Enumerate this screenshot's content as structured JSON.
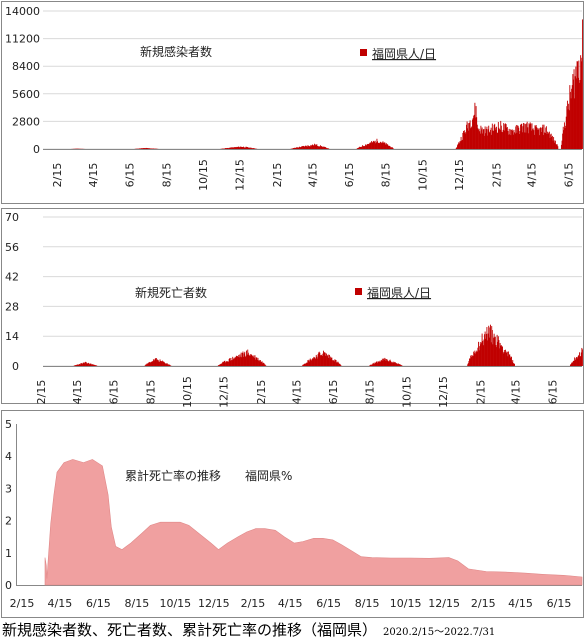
{
  "chart_data": [
    {
      "type": "bar",
      "title": "新規感染者数",
      "legend": "福岡県人/日",
      "legend_position": "top-center",
      "color": "#c00000",
      "ylim": [
        0,
        14000
      ],
      "yticks": [
        "0",
        "2800",
        "5600",
        "8400",
        "11200",
        "14000"
      ],
      "xticks": [
        "2/15",
        "4/15",
        "6/15",
        "8/15",
        "10/15",
        "12/15",
        "2/15",
        "4/15",
        "6/15",
        "8/15",
        "10/15",
        "12/15",
        "2/15",
        "4/15",
        "6/15"
      ],
      "grid": true,
      "waves": [
        {
          "start": "2020-04-01",
          "peak": "2020-04-10",
          "end": "2020-04-25",
          "peak_value": 40
        },
        {
          "start": "2020-07-15",
          "peak": "2020-08-03",
          "end": "2020-08-25",
          "peak_value": 120
        },
        {
          "start": "2020-12-05",
          "peak": "2021-01-10",
          "end": "2021-02-05",
          "peak_value": 300
        },
        {
          "start": "2021-04-01",
          "peak": "2021-05-12",
          "end": "2021-06-05",
          "peak_value": 560
        },
        {
          "start": "2021-07-20",
          "peak": "2021-08-25",
          "end": "2021-09-20",
          "peak_value": 1100
        },
        {
          "start": "2022-01-01",
          "peak": "2022-02-05",
          "end": "2022-06-20",
          "peak_value": 5300
        },
        {
          "start": "2022-06-25",
          "peak": "2022-07-31",
          "end": "2022-07-31",
          "peak_value": 13200
        }
      ]
    },
    {
      "type": "bar",
      "title": "新規死亡者数",
      "legend": "福岡県人/日",
      "legend_position": "top-center",
      "color": "#c00000",
      "ylim": [
        0,
        70
      ],
      "yticks": [
        "0",
        "14",
        "28",
        "42",
        "56",
        "70"
      ],
      "xticks": [
        "2/15",
        "4/15",
        "6/15",
        "8/15",
        "10/15",
        "12/15",
        "2/15",
        "4/15",
        "6/15",
        "8/15",
        "10/15",
        "12/15",
        "2/15",
        "4/15",
        "6/15"
      ],
      "grid": true,
      "waves": [
        {
          "start": "2020-04-05",
          "peak": "2020-04-25",
          "end": "2020-05-15",
          "peak_value": 2
        },
        {
          "start": "2020-08-01",
          "peak": "2020-08-20",
          "end": "2020-09-15",
          "peak_value": 4
        },
        {
          "start": "2020-12-01",
          "peak": "2021-01-20",
          "end": "2021-02-20",
          "peak_value": 8
        },
        {
          "start": "2021-04-20",
          "peak": "2021-05-25",
          "end": "2021-06-25",
          "peak_value": 8
        },
        {
          "start": "2021-08-10",
          "peak": "2021-09-05",
          "end": "2021-10-05",
          "peak_value": 4
        },
        {
          "start": "2022-01-20",
          "peak": "2022-02-25",
          "end": "2022-04-10",
          "peak_value": 21
        },
        {
          "start": "2022-07-10",
          "peak": "2022-07-31",
          "end": "2022-07-31",
          "peak_value": 9
        }
      ]
    },
    {
      "type": "area",
      "title": "累計死亡率の推移　　福岡県%",
      "color": "#f0a0a0",
      "ylim": [
        0,
        5
      ],
      "yticks": [
        "0",
        "1",
        "2",
        "3",
        "4",
        "5"
      ],
      "xticks": [
        "2/15",
        "4/15",
        "6/15",
        "8/15",
        "10/15",
        "12/15",
        "2/15",
        "4/15",
        "6/15",
        "8/15",
        "10/15",
        "12/15",
        "2/15",
        "4/15",
        "6/15"
      ],
      "grid": false,
      "x": [
        "2020-04-01",
        "2020-04-03",
        "2020-04-04",
        "2020-04-10",
        "2020-04-15",
        "2020-04-20",
        "2020-05-01",
        "2020-05-15",
        "2020-06-01",
        "2020-06-15",
        "2020-07-01",
        "2020-07-10",
        "2020-07-15",
        "2020-07-22",
        "2020-08-01",
        "2020-08-15",
        "2020-09-01",
        "2020-09-15",
        "2020-10-01",
        "2020-10-15",
        "2020-11-01",
        "2020-11-15",
        "2020-12-01",
        "2020-12-20",
        "2021-01-01",
        "2021-01-15",
        "2021-02-01",
        "2021-02-15",
        "2021-03-01",
        "2021-03-15",
        "2021-04-01",
        "2021-04-15",
        "2021-05-01",
        "2021-05-15",
        "2021-06-01",
        "2021-06-15",
        "2021-07-01",
        "2021-07-15",
        "2021-08-01",
        "2021-08-15",
        "2021-09-01",
        "2021-10-01",
        "2021-11-01",
        "2021-12-01",
        "2022-01-01",
        "2022-01-15",
        "2022-02-01",
        "2022-03-01",
        "2022-04-01",
        "2022-05-01",
        "2022-06-01",
        "2022-07-01",
        "2022-07-15",
        "2022-07-31"
      ],
      "y": [
        0.85,
        0.6,
        0.2,
        1.9,
        2.8,
        3.5,
        3.8,
        3.9,
        3.8,
        3.9,
        3.7,
        2.8,
        1.8,
        1.2,
        1.1,
        1.3,
        1.6,
        1.85,
        1.95,
        1.95,
        1.95,
        1.85,
        1.6,
        1.3,
        1.1,
        1.3,
        1.5,
        1.65,
        1.75,
        1.75,
        1.7,
        1.5,
        1.3,
        1.35,
        1.45,
        1.45,
        1.4,
        1.25,
        1.05,
        0.88,
        0.85,
        0.84,
        0.84,
        0.83,
        0.85,
        0.75,
        0.5,
        0.42,
        0.4,
        0.37,
        0.33,
        0.3,
        0.28,
        0.25
      ]
    }
  ],
  "footer": {
    "title": "新規感染者数、死亡者数、累計死亡率の推移（福岡県）",
    "range": "2020.2/15～2022.7/31"
  }
}
